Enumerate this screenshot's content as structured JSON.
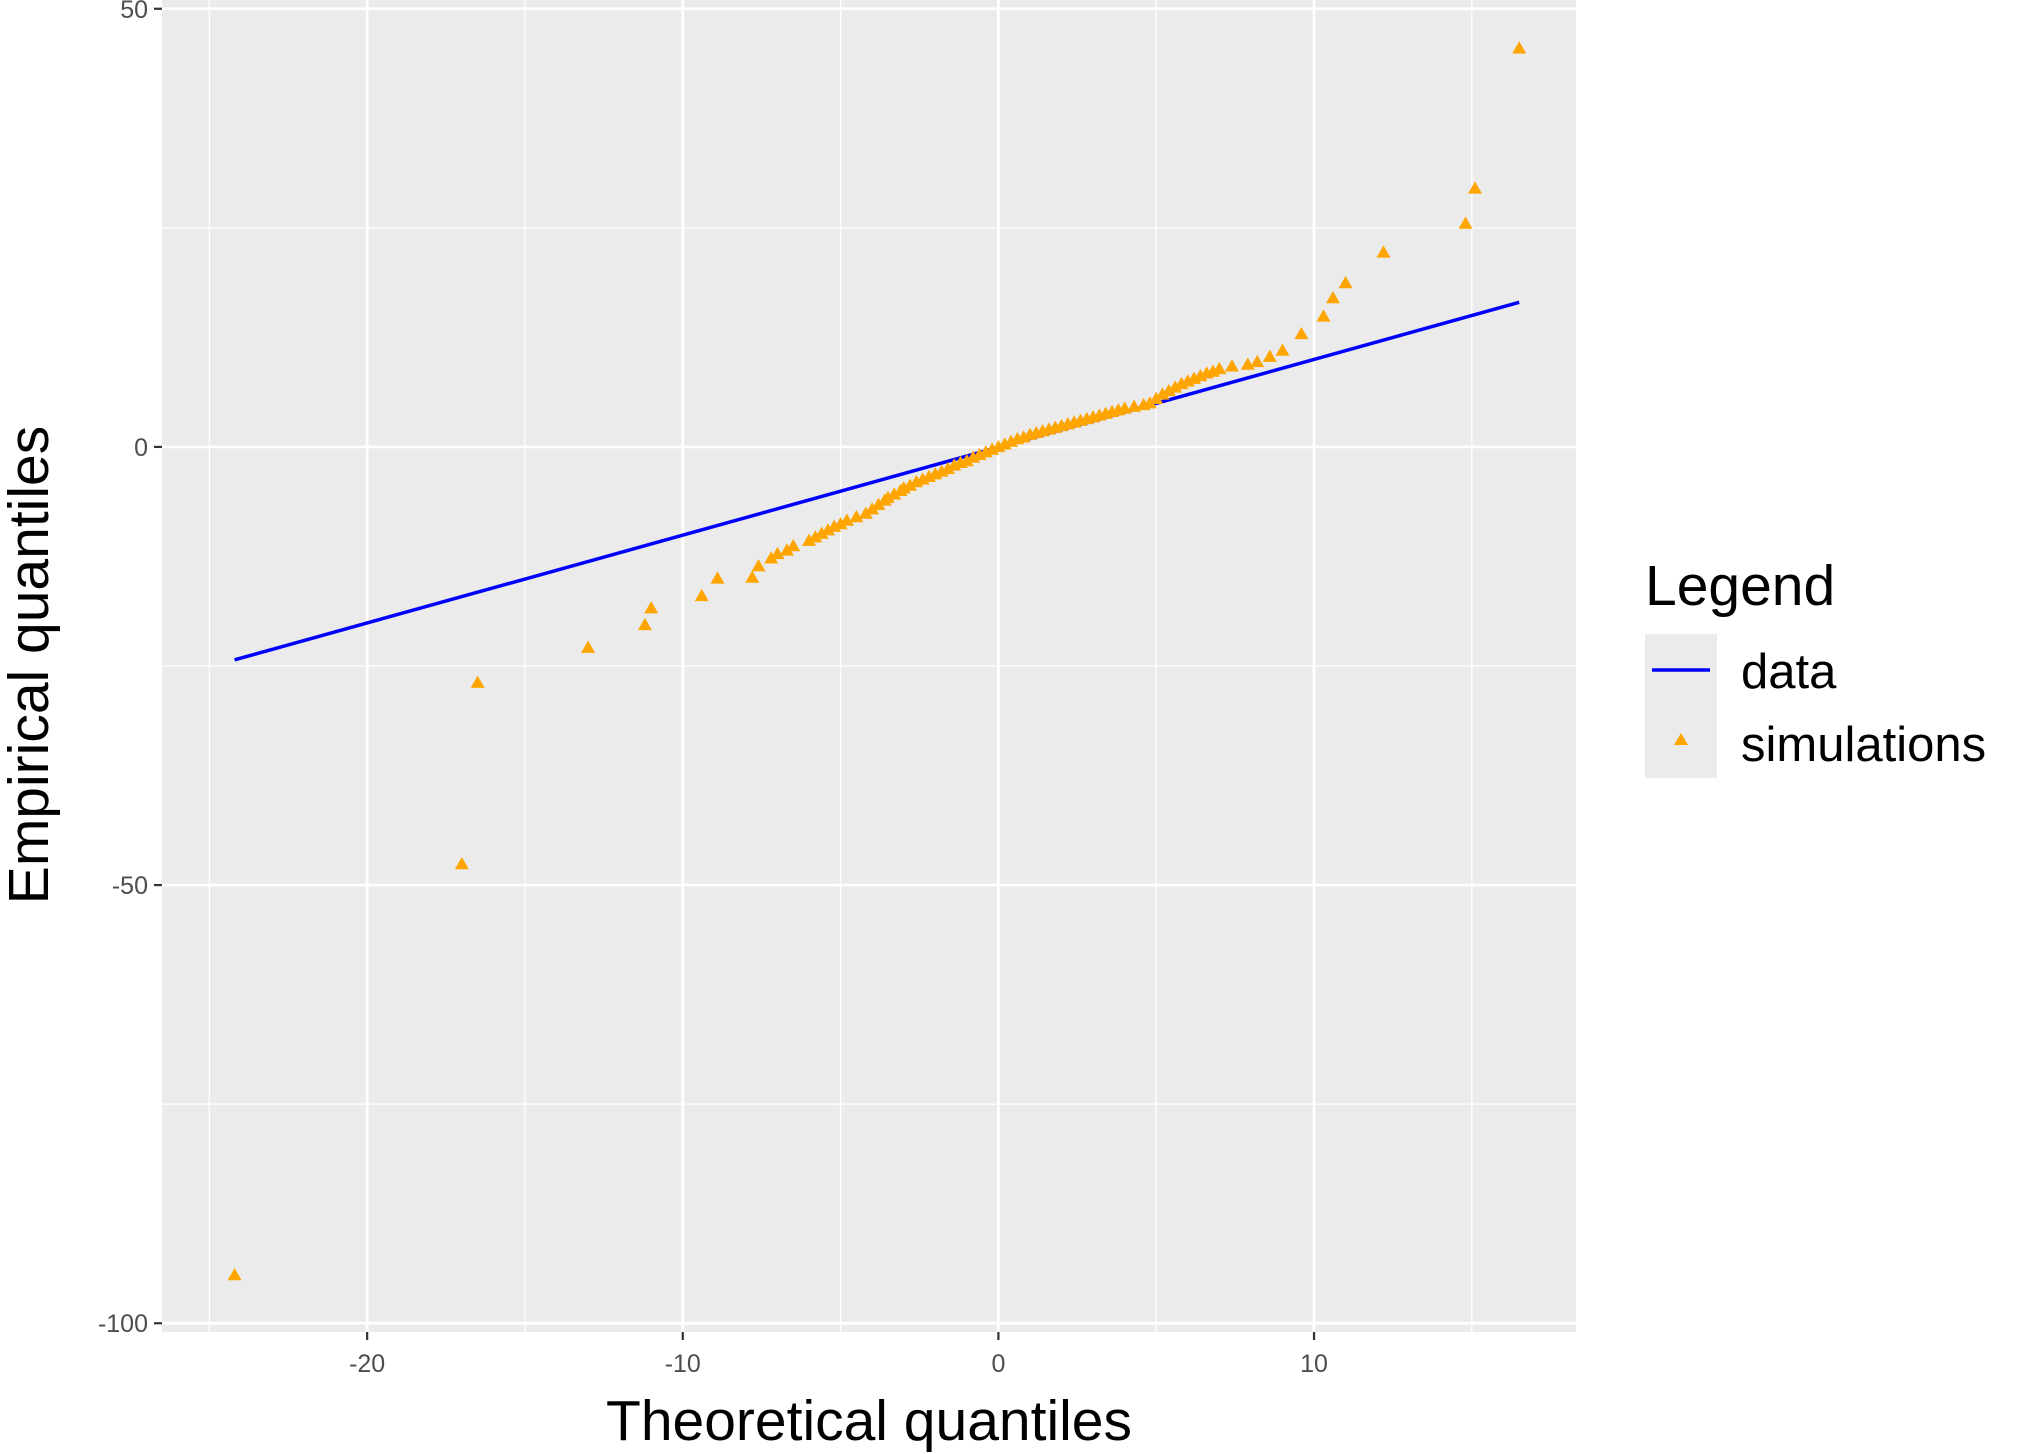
{
  "chart_data": {
    "type": "scatter",
    "xlabel": "Theoretical quantiles",
    "ylabel": "Empirical quantiles",
    "xlim": [
      -26.5,
      18.3
    ],
    "ylim": [
      -101,
      51
    ],
    "x_ticks": [
      -20,
      -10,
      0,
      10
    ],
    "x_tick_labels": [
      "-20",
      "-10",
      "0",
      "10"
    ],
    "y_ticks": [
      -100,
      -50,
      0,
      50
    ],
    "y_tick_labels": [
      "-100",
      "-50",
      "0",
      "50"
    ],
    "grid": true,
    "panel_background": "#ebebeb",
    "legend": {
      "title": "Legend",
      "position": "right",
      "entries": [
        {
          "label": "data",
          "kind": "line",
          "color": "#0000ff"
        },
        {
          "label": "simulations",
          "kind": "triangle",
          "color": "#ffa500"
        }
      ]
    },
    "series": [
      {
        "name": "data",
        "kind": "line",
        "color": "#0000ff",
        "x": [
          -24.2,
          16.5
        ],
        "y": [
          -24.3,
          16.5
        ]
      },
      {
        "name": "simulations",
        "kind": "triangle",
        "color": "#ffa500",
        "x": [
          -24.2,
          -17.0,
          -16.5,
          -13.0,
          -11.2,
          -11.0,
          -9.4,
          -8.9,
          -7.8,
          -7.6,
          -7.2,
          -7.0,
          -6.7,
          -6.5,
          -6.0,
          -5.8,
          -5.6,
          -5.4,
          -5.2,
          -5.0,
          -4.8,
          -4.5,
          -4.2,
          -4.0,
          -3.8,
          -3.6,
          -3.5,
          -3.3,
          -3.1,
          -3.0,
          -2.8,
          -2.6,
          -2.4,
          -2.2,
          -2.0,
          -1.8,
          -1.6,
          -1.4,
          -1.2,
          -1.0,
          -0.8,
          -0.6,
          -0.4,
          -0.2,
          0.0,
          0.2,
          0.4,
          0.6,
          0.8,
          1.0,
          1.2,
          1.4,
          1.6,
          1.8,
          2.0,
          2.2,
          2.4,
          2.6,
          2.8,
          3.0,
          3.2,
          3.4,
          3.6,
          3.8,
          4.0,
          4.3,
          4.6,
          4.8,
          5.0,
          5.2,
          5.4,
          5.6,
          5.8,
          6.0,
          6.2,
          6.4,
          6.6,
          6.8,
          7.0,
          7.4,
          7.9,
          8.2,
          8.6,
          9.0,
          9.6,
          10.3,
          10.6,
          11.0,
          12.2,
          14.8,
          15.1,
          16.5
        ],
        "y": [
          -94.5,
          -47.6,
          -26.9,
          -22.9,
          -20.3,
          -18.4,
          -17.0,
          -15.0,
          -14.9,
          -13.6,
          -12.7,
          -12.2,
          -11.8,
          -11.3,
          -10.7,
          -10.3,
          -9.9,
          -9.5,
          -9.1,
          -8.8,
          -8.4,
          -8.0,
          -7.6,
          -7.1,
          -6.6,
          -6.1,
          -5.8,
          -5.4,
          -5.0,
          -4.7,
          -4.4,
          -4.0,
          -3.7,
          -3.4,
          -3.1,
          -2.8,
          -2.5,
          -2.1,
          -1.8,
          -1.6,
          -1.2,
          -0.9,
          -0.6,
          -0.3,
          0.0,
          0.3,
          0.6,
          0.9,
          1.1,
          1.4,
          1.6,
          1.8,
          2.0,
          2.2,
          2.4,
          2.6,
          2.8,
          3.0,
          3.2,
          3.4,
          3.6,
          3.8,
          4.0,
          4.2,
          4.4,
          4.6,
          4.8,
          5.0,
          5.5,
          6.0,
          6.4,
          6.8,
          7.2,
          7.5,
          7.8,
          8.1,
          8.4,
          8.6,
          8.9,
          9.2,
          9.4,
          9.7,
          10.3,
          11.0,
          12.9,
          14.9,
          17.0,
          18.7,
          22.2,
          25.5,
          29.5,
          45.5
        ]
      }
    ]
  }
}
